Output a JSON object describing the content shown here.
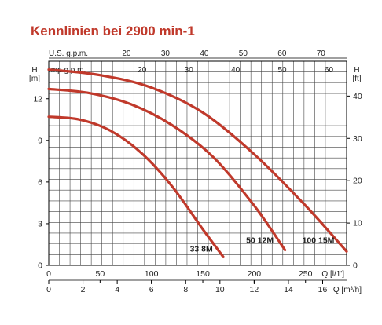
{
  "chart_data": {
    "type": "line",
    "title": "Kennlinien bei 2900 min-1",
    "y_left": {
      "label": "H",
      "unit": "[m]",
      "ticks": [
        0,
        3,
        6,
        9,
        12
      ],
      "range": [
        0,
        14.7
      ]
    },
    "y_right": {
      "label": "H",
      "unit": "[ft]",
      "ticks": [
        0,
        10,
        20,
        30,
        40
      ]
    },
    "x_axes": {
      "us_gpm": {
        "label": "U.S. g.p.m.",
        "ticks": [
          20,
          30,
          40,
          50,
          60,
          70
        ]
      },
      "imp_gpm": {
        "label": "Imp g.p.m.",
        "ticks": [
          20,
          30,
          40,
          50,
          60
        ]
      },
      "l_min": {
        "label": "Q [l/1']",
        "ticks": [
          0,
          50,
          100,
          150,
          200,
          250
        ]
      },
      "m3_h": {
        "label": "Q [m³/h]",
        "ticks": [
          0,
          2,
          4,
          6,
          8,
          10,
          12,
          14,
          16
        ]
      }
    },
    "x_range_l_min": [
      0,
      290
    ],
    "grid": true,
    "series": [
      {
        "name": "33 8M",
        "x": [
          0,
          30,
          60,
          90,
          120,
          150,
          170
        ],
        "y": [
          10.7,
          10.5,
          9.7,
          8.1,
          5.7,
          2.6,
          0.6
        ]
      },
      {
        "name": "50 12M",
        "x": [
          0,
          40,
          80,
          120,
          160,
          200,
          230
        ],
        "y": [
          12.7,
          12.4,
          11.6,
          10.1,
          7.8,
          4.3,
          1.1
        ]
      },
      {
        "name": "100 15M",
        "x": [
          0,
          50,
          100,
          150,
          200,
          250,
          290
        ],
        "y": [
          14.1,
          13.7,
          12.8,
          11.0,
          8.0,
          4.3,
          1.0
        ]
      }
    ]
  }
}
